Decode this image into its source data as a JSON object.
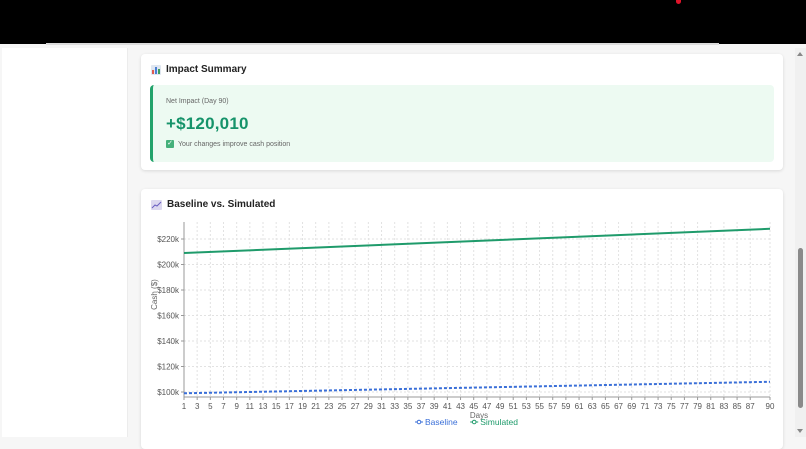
{
  "summary": {
    "title": "Impact Summary",
    "icon": "bar-chart-icon",
    "net_impact_label": "Net Impact (Day 90)",
    "net_impact_value": "+$120,010",
    "note": "Your changes improve cash position",
    "note_icon": "check-icon",
    "accent_color": "#16936a"
  },
  "chart_card": {
    "title": "Baseline vs. Simulated",
    "icon": "line-chart-icon"
  },
  "chart_data": {
    "type": "line",
    "title": "Baseline vs. Simulated",
    "xlabel": "Days",
    "ylabel": "Cash ($)",
    "x_range": [
      1,
      90
    ],
    "ylim": [
      95000,
      230000
    ],
    "y_ticks": [
      "$100k",
      "$120k",
      "$140k",
      "$160k",
      "$180k",
      "$200k",
      "$220k"
    ],
    "y_tick_values": [
      100000,
      120000,
      140000,
      160000,
      180000,
      200000,
      220000
    ],
    "x_tick_labels": [
      "1",
      "3",
      "5",
      "7",
      "9",
      "11",
      "13",
      "15",
      "17",
      "19",
      "21",
      "23",
      "25",
      "27",
      "29",
      "31",
      "33",
      "35",
      "37",
      "39",
      "41",
      "43",
      "45",
      "47",
      "49",
      "51",
      "53",
      "55",
      "57",
      "59",
      "61",
      "63",
      "65",
      "67",
      "69",
      "71",
      "73",
      "75",
      "77",
      "79",
      "81",
      "83",
      "85",
      "87",
      "90"
    ],
    "grid": true,
    "legend_position": "bottom",
    "series": [
      {
        "name": "Baseline",
        "color": "#3a6fd8",
        "style": "dotted",
        "x": [
          1,
          90
        ],
        "values": [
          99000,
          108000
        ]
      },
      {
        "name": "Simulated",
        "color": "#1f9b6b",
        "style": "solid",
        "x": [
          1,
          90
        ],
        "values": [
          209000,
          228000
        ]
      }
    ]
  }
}
